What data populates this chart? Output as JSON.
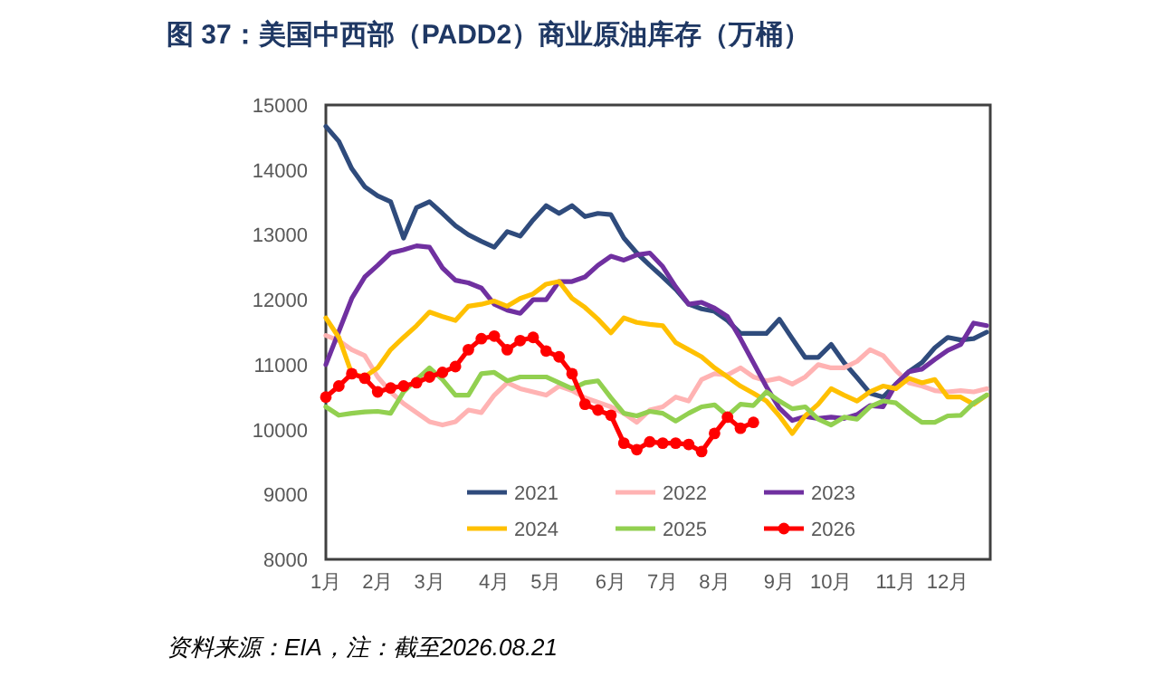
{
  "chart_data": {
    "type": "line",
    "title": "图 37：美国中西部（PADD2）商业原油库存（万桶）",
    "annotations": [
      "资料来源：EIA，注：截至2026.08.21"
    ],
    "categories": [
      "1月",
      null,
      null,
      null,
      "2月",
      null,
      null,
      null,
      "3月",
      null,
      null,
      null,
      null,
      "4月",
      null,
      null,
      null,
      "5月",
      null,
      null,
      null,
      null,
      "6月",
      null,
      null,
      null,
      "7月",
      null,
      null,
      null,
      "8月",
      null,
      null,
      null,
      null,
      "9月",
      null,
      null,
      null,
      "10月",
      null,
      null,
      null,
      null,
      "11月",
      null,
      null,
      null,
      "12月",
      null,
      null,
      null
    ],
    "ylim": [
      8000,
      15000
    ],
    "yticks": [
      8000,
      9000,
      10000,
      11000,
      12000,
      13000,
      14000,
      15000
    ],
    "legend": "bottom",
    "marker": "none",
    "line_style": "solid",
    "series": [
      {
        "name": "2021",
        "color": "#2f4b7c",
        "values": [
          14670,
          14440,
          14020,
          13740,
          13600,
          13510,
          12950,
          13420,
          13510,
          13330,
          13140,
          13000,
          12900,
          12810,
          13050,
          12980,
          13230,
          13450,
          13330,
          13450,
          13280,
          13330,
          13310,
          12950,
          12720,
          12530,
          12350,
          12160,
          11930,
          11860,
          11820,
          11680,
          11480,
          11480,
          11480,
          11700,
          11400,
          11110,
          11110,
          11310,
          11030,
          10800,
          10560,
          10500,
          10700,
          10890,
          11030,
          11260,
          11420,
          11380,
          11400,
          11500
        ]
      },
      {
        "name": "2022",
        "color": "#ffb3b3",
        "values": [
          11450,
          11370,
          11230,
          11140,
          10810,
          10580,
          10400,
          10260,
          10120,
          10070,
          10120,
          10300,
          10260,
          10530,
          10720,
          10630,
          10580,
          10530,
          10670,
          10600,
          10490,
          10420,
          10350,
          10250,
          10110,
          10300,
          10350,
          10500,
          10440,
          10770,
          10860,
          10840,
          10950,
          10810,
          10750,
          10790,
          10700,
          10810,
          11000,
          10950,
          10950,
          11050,
          11230,
          11140,
          10910,
          10720,
          10670,
          10600,
          10580,
          10600,
          10580,
          10630
        ]
      },
      {
        "name": "2023",
        "color": "#7030a0",
        "values": [
          11000,
          11510,
          12020,
          12350,
          12530,
          12720,
          12770,
          12830,
          12810,
          12490,
          12300,
          12260,
          12180,
          11930,
          11840,
          11790,
          12000,
          12000,
          12280,
          12280,
          12350,
          12530,
          12670,
          12610,
          12690,
          12720,
          12510,
          12200,
          11930,
          11960,
          11870,
          11740,
          11400,
          11030,
          10660,
          10330,
          10140,
          10200,
          10170,
          10190,
          10170,
          10230,
          10370,
          10350,
          10700,
          10890,
          10930,
          11080,
          11220,
          11310,
          11640,
          11600
        ]
      },
      {
        "name": "2024",
        "color": "#ffc000",
        "values": [
          11720,
          11420,
          10860,
          10810,
          10950,
          11230,
          11420,
          11600,
          11810,
          11740,
          11680,
          11900,
          11930,
          11980,
          11900,
          12020,
          12090,
          12240,
          12280,
          12020,
          11880,
          11700,
          11490,
          11720,
          11650,
          11620,
          11600,
          11340,
          11230,
          11120,
          10950,
          10810,
          10670,
          10560,
          10440,
          10210,
          9940,
          10210,
          10390,
          10630,
          10530,
          10440,
          10580,
          10670,
          10630,
          10790,
          10720,
          10770,
          10500,
          10500,
          10390,
          10530
        ]
      },
      {
        "name": "2025",
        "color": "#92d050",
        "values": [
          10350,
          10220,
          10250,
          10270,
          10280,
          10250,
          10580,
          10770,
          10950,
          10770,
          10530,
          10530,
          10860,
          10880,
          10750,
          10810,
          10810,
          10810,
          10720,
          10630,
          10720,
          10750,
          10490,
          10250,
          10210,
          10280,
          10250,
          10130,
          10250,
          10350,
          10380,
          10210,
          10390,
          10370,
          10580,
          10440,
          10320,
          10350,
          10160,
          10070,
          10190,
          10160,
          10350,
          10440,
          10410,
          10250,
          10110,
          10110,
          10210,
          10220,
          10410,
          10530
        ]
      },
      {
        "name": "2026",
        "color": "#ff0000",
        "marker": "circle",
        "values": [
          10500,
          10670,
          10860,
          10790,
          10580,
          10640,
          10670,
          10720,
          10810,
          10880,
          10970,
          11230,
          11400,
          11440,
          11230,
          11370,
          11420,
          11210,
          11120,
          10860,
          10390,
          10300,
          10220,
          9790,
          9690,
          9810,
          9790,
          9790,
          9770,
          9660,
          9940,
          10190,
          10020,
          10110,
          null,
          null,
          null,
          null,
          null,
          null,
          null,
          null,
          null,
          null,
          null,
          null,
          null,
          null,
          null,
          null,
          null,
          null
        ]
      }
    ]
  }
}
